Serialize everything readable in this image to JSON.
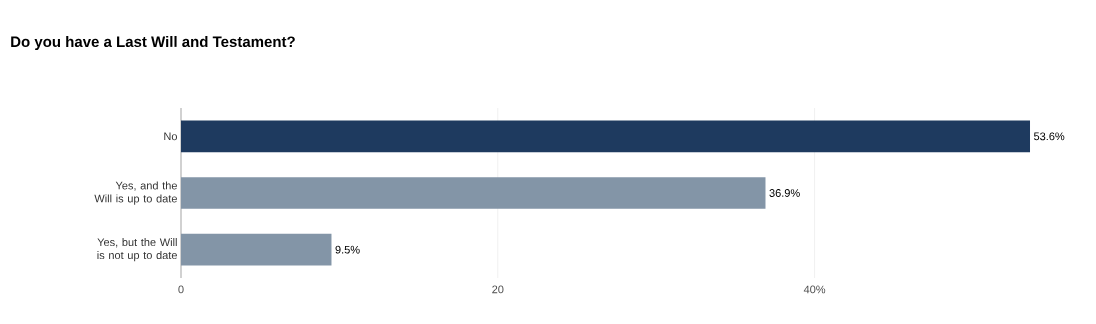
{
  "chart_data": {
    "type": "bar",
    "orientation": "horizontal",
    "title": "Do you have a Last Will and Testament?",
    "categories": [
      "No",
      "Yes, and the Will is up to date",
      "Yes, but the Will is not up to date"
    ],
    "values": [
      53.6,
      36.9,
      9.5
    ],
    "value_labels": [
      "53.6%",
      "36.9%",
      "9.5%"
    ],
    "colors": [
      "#1e3a5f",
      "#8395a7",
      "#8395a7"
    ],
    "xlim": [
      0,
      53.6
    ],
    "xticks": [
      0,
      20,
      {
        "value": 40,
        "label": "40%"
      }
    ],
    "grid": "x"
  }
}
